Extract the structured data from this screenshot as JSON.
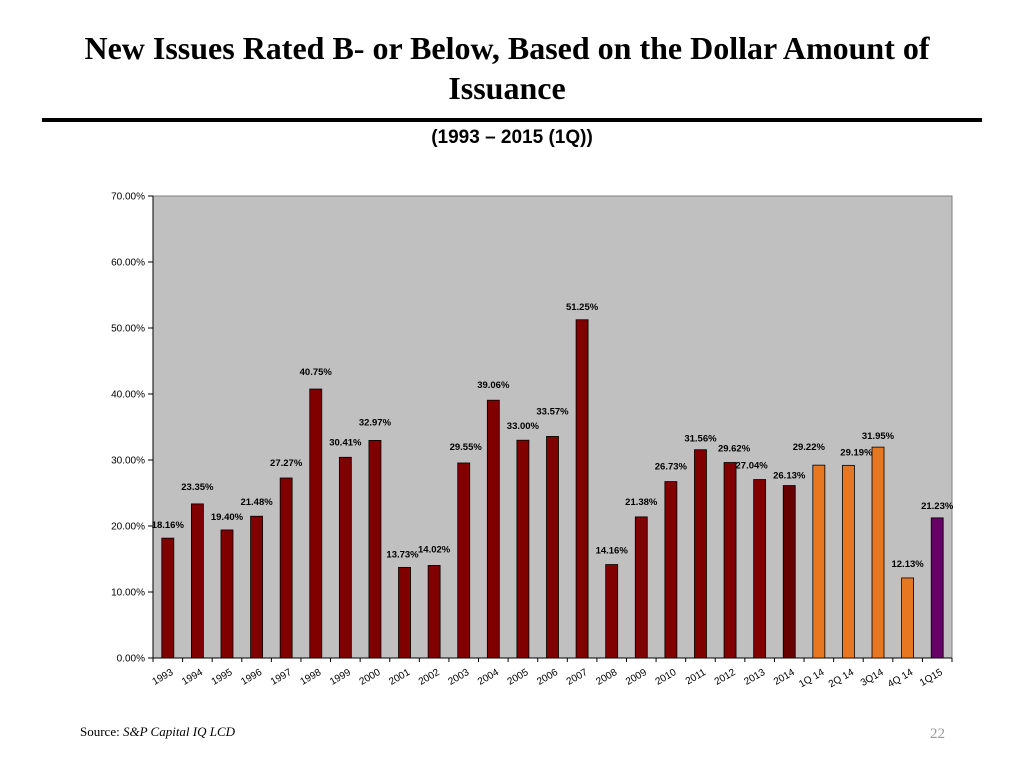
{
  "header": {
    "title": "New Issues Rated B- or Below, Based on the Dollar Amount of Issuance",
    "subtitle": "(1993 – 2015 (1Q))"
  },
  "footer": {
    "source_prefix": "Source:",
    "source_name": "S&P Capital IQ LCD",
    "page_number": "22"
  },
  "colors": {
    "plot_background": "#c0c0c0",
    "annual": "#800000",
    "year_2014": "#660000",
    "quarterly_2014": "#e87722",
    "q1_2015": "#660066"
  },
  "chart_data": {
    "type": "bar",
    "title": "New Issues Rated B- or Below, Based on the Dollar Amount of Issuance",
    "subtitle": "(1993 – 2015 (1Q))",
    "xlabel": "",
    "ylabel": "",
    "ylim": [
      0,
      70
    ],
    "yticks": [
      "0.00%",
      "10.00%",
      "20.00%",
      "30.00%",
      "40.00%",
      "50.00%",
      "60.00%",
      "70.00%"
    ],
    "grid": false,
    "categories": [
      "1993",
      "1994",
      "1995",
      "1996",
      "1997",
      "1998",
      "1999",
      "2000",
      "2001",
      "2002",
      "2003",
      "2004",
      "2005",
      "2006",
      "2007",
      "2008",
      "2009",
      "2010",
      "2011",
      "2012",
      "2013",
      "2014",
      "1Q 14",
      "2Q 14",
      "3Q14",
      "4Q 14",
      "1Q15"
    ],
    "values": [
      18.16,
      23.35,
      19.4,
      21.48,
      27.27,
      40.75,
      30.41,
      32.97,
      13.73,
      14.02,
      29.55,
      39.06,
      33.0,
      33.57,
      51.25,
      14.16,
      21.38,
      26.73,
      31.56,
      29.62,
      27.04,
      26.13,
      29.22,
      29.19,
      31.95,
      12.13,
      21.23
    ],
    "labels": [
      "18.16%",
      "23.35%",
      "19.40%",
      "21.48%",
      "27.27%",
      "40.75%",
      "30.41%",
      "32.97%",
      "13.73%",
      "14.02%",
      "29.55%",
      "39.06%",
      "33.00%",
      "33.57%",
      "51.25%",
      "14.16%",
      "21.38%",
      "26.73%",
      "31.56%",
      "29.62%",
      "27.04%",
      "26.13%",
      "29.22%",
      "29.19%",
      "31.95%",
      "12.13%",
      "21.23%"
    ],
    "bar_colors": [
      "annual",
      "annual",
      "annual",
      "annual",
      "annual",
      "annual",
      "annual",
      "annual",
      "annual",
      "annual",
      "annual",
      "annual",
      "annual",
      "annual",
      "annual",
      "annual",
      "annual",
      "annual",
      "annual",
      "annual",
      "annual",
      "year_2014",
      "quarterly_2014",
      "quarterly_2014",
      "quarterly_2014",
      "quarterly_2014",
      "q1_2015"
    ]
  }
}
